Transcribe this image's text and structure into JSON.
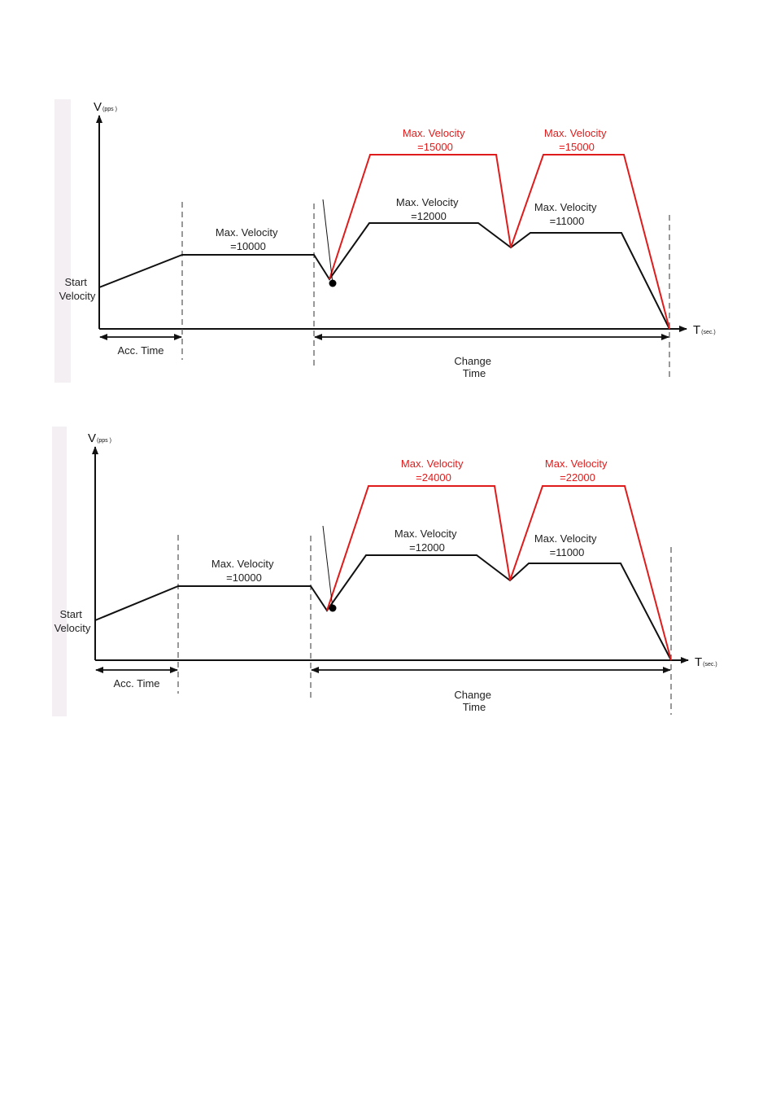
{
  "colors": {
    "black_profile": "#111111",
    "red_profile": "#e01b1b",
    "dash": "#555555"
  },
  "diagrams": [
    {
      "y_axis": {
        "main": "V",
        "sub": "(pps )"
      },
      "x_axis": {
        "main": "T",
        "sub": "(sec.)"
      },
      "start_label": [
        "Start",
        "Velocity"
      ],
      "acc_label": "Acc. Time",
      "change_label": [
        "Change",
        "Time"
      ],
      "black_labels": [
        {
          "line1": "Max. Velocity",
          "line2": "=10000"
        },
        {
          "line1": "Max. Velocity",
          "line2": "=12000"
        },
        {
          "line1": "Max. Velocity",
          "line2": "=11000"
        }
      ],
      "red_labels": [
        {
          "line1": "Max. Velocity",
          "line2": "=15000"
        },
        {
          "line1": "Max. Velocity",
          "line2": "=15000"
        }
      ]
    },
    {
      "y_axis": {
        "main": "V",
        "sub": "(pps )"
      },
      "x_axis": {
        "main": "T",
        "sub": "(sec.)"
      },
      "start_label": [
        "Start",
        "Velocity"
      ],
      "acc_label": "Acc. Time",
      "change_label": [
        "Change",
        "Time"
      ],
      "black_labels": [
        {
          "line1": "Max. Velocity",
          "line2": "=10000"
        },
        {
          "line1": "Max. Velocity",
          "line2": "=12000"
        },
        {
          "line1": "Max. Velocity",
          "line2": "=11000"
        }
      ],
      "red_labels": [
        {
          "line1": "Max. Velocity",
          "line2": "=24000"
        },
        {
          "line1": "Max. Velocity",
          "line2": "=22000"
        }
      ]
    }
  ]
}
